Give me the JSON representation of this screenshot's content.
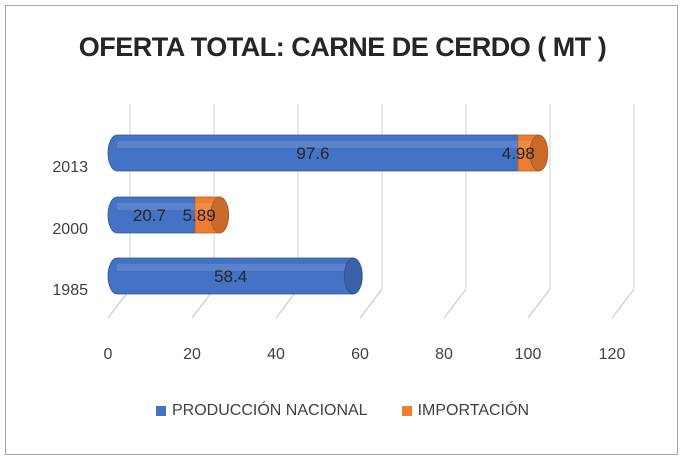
{
  "chart_data": {
    "type": "bar",
    "orientation": "horizontal",
    "stacked": true,
    "title": "OFERTA TOTAL: CARNE DE CERDO ( MT )",
    "categories": [
      "1985",
      "2000",
      "2013"
    ],
    "series": [
      {
        "name": "PRODUCCIÓN NACIONAL",
        "color": "#4472C4",
        "values": [
          58.4,
          20.7,
          97.6
        ]
      },
      {
        "name": "IMPORTACIÓN",
        "color": "#ED7D31",
        "values": [
          null,
          5.89,
          4.98
        ]
      }
    ],
    "data_labels": [
      [
        "58.4",
        "20.7",
        "97.6"
      ],
      [
        "",
        "5.89",
        "4.98"
      ]
    ],
    "xlim": [
      0,
      120
    ],
    "xticks": [
      "0",
      "20",
      "40",
      "60",
      "80",
      "100",
      "120"
    ],
    "grid": true,
    "legend_position": "bottom"
  }
}
